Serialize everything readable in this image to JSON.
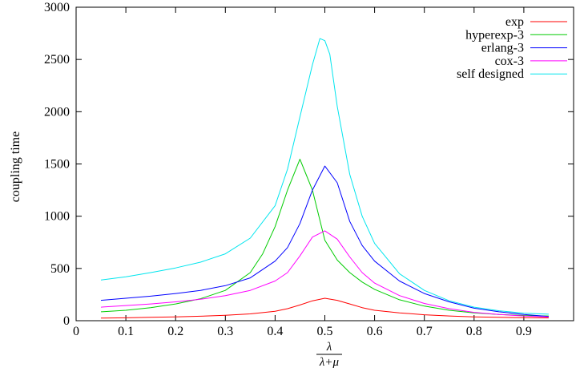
{
  "chart_data": {
    "type": "line",
    "title": "",
    "xlabel": {
      "numerator": "λ",
      "denominator": "λ+μ"
    },
    "ylabel": "coupling time",
    "xlim": [
      0,
      1
    ],
    "ylim": [
      0,
      3000
    ],
    "xticks": [
      0,
      0.1,
      0.2,
      0.3,
      0.4,
      0.5,
      0.6,
      0.7,
      0.8,
      0.9
    ],
    "xtick_labels": [
      "0",
      "0.1",
      "0.2",
      "0.3",
      "0.4",
      "0.5",
      "0.6",
      "0.7",
      "0.8",
      "0.9"
    ],
    "yticks": [
      0,
      500,
      1000,
      1500,
      2000,
      2500,
      3000
    ],
    "ytick_labels": [
      "0",
      "500",
      "1000",
      "1500",
      "2000",
      "2500",
      "3000"
    ],
    "grid": false,
    "legend_position": "top-right",
    "series": [
      {
        "name": "exp",
        "color": "#ff0000",
        "x": [
          0.05,
          0.1,
          0.15,
          0.2,
          0.25,
          0.3,
          0.35,
          0.4,
          0.425,
          0.45,
          0.475,
          0.5,
          0.525,
          0.55,
          0.575,
          0.6,
          0.65,
          0.7,
          0.75,
          0.8,
          0.85,
          0.9,
          0.95
        ],
        "y": [
          25,
          28,
          32,
          37,
          43,
          52,
          65,
          90,
          115,
          150,
          190,
          215,
          195,
          160,
          125,
          100,
          75,
          57,
          45,
          37,
          32,
          29,
          27
        ]
      },
      {
        "name": "hyperexp-3",
        "color": "#00cc00",
        "x": [
          0.05,
          0.1,
          0.15,
          0.2,
          0.25,
          0.3,
          0.35,
          0.375,
          0.4,
          0.425,
          0.45,
          0.475,
          0.5,
          0.525,
          0.55,
          0.575,
          0.6,
          0.65,
          0.7,
          0.75,
          0.8,
          0.85,
          0.9,
          0.95
        ],
        "y": [
          85,
          100,
          125,
          160,
          210,
          290,
          460,
          640,
          900,
          1250,
          1545,
          1250,
          770,
          580,
          460,
          370,
          300,
          200,
          140,
          100,
          75,
          60,
          50,
          45
        ]
      },
      {
        "name": "erlang-3",
        "color": "#0000ff",
        "x": [
          0.05,
          0.1,
          0.15,
          0.2,
          0.25,
          0.3,
          0.35,
          0.4,
          0.425,
          0.45,
          0.475,
          0.5,
          0.525,
          0.55,
          0.575,
          0.6,
          0.65,
          0.7,
          0.75,
          0.8,
          0.85,
          0.9,
          0.95
        ],
        "y": [
          195,
          215,
          235,
          260,
          290,
          335,
          410,
          570,
          700,
          930,
          1250,
          1480,
          1320,
          950,
          720,
          570,
          380,
          260,
          180,
          120,
          85,
          60,
          40
        ]
      },
      {
        "name": "cox-3",
        "color": "#ff00ff",
        "x": [
          0.05,
          0.1,
          0.15,
          0.2,
          0.25,
          0.3,
          0.35,
          0.4,
          0.425,
          0.45,
          0.475,
          0.5,
          0.525,
          0.55,
          0.575,
          0.6,
          0.65,
          0.7,
          0.75,
          0.8,
          0.85,
          0.9,
          0.95
        ],
        "y": [
          130,
          145,
          160,
          180,
          205,
          240,
          290,
          380,
          460,
          620,
          800,
          860,
          780,
          610,
          460,
          360,
          240,
          165,
          115,
          80,
          60,
          45,
          35
        ]
      },
      {
        "name": "self designed",
        "color": "#00e5ee",
        "x": [
          0.05,
          0.1,
          0.15,
          0.2,
          0.25,
          0.3,
          0.35,
          0.4,
          0.425,
          0.45,
          0.475,
          0.49,
          0.5,
          0.51,
          0.525,
          0.55,
          0.575,
          0.6,
          0.65,
          0.7,
          0.75,
          0.8,
          0.85,
          0.9,
          0.95
        ],
        "y": [
          390,
          420,
          460,
          505,
          560,
          640,
          790,
          1100,
          1450,
          1950,
          2450,
          2700,
          2680,
          2550,
          2050,
          1400,
          1000,
          740,
          450,
          290,
          190,
          130,
          95,
          72,
          62
        ]
      }
    ]
  }
}
